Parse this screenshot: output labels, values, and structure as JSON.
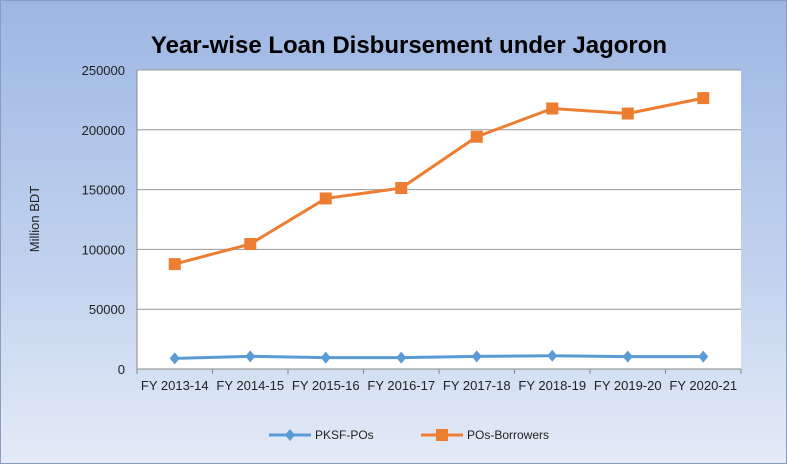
{
  "chart_data": {
    "type": "line",
    "title": "Year-wise Loan Disbursement under Jagoron",
    "xlabel": "",
    "ylabel": "Million BDT",
    "categories": [
      "FY 2013-14",
      "FY 2014-15",
      "FY 2015-16",
      "FY 2016-17",
      "FY 2017-18",
      "FY 2018-19",
      "FY 2019-20",
      "FY 2020-21"
    ],
    "ylim": [
      0,
      250000
    ],
    "yticks": [
      "0",
      "50000",
      "100000",
      "150000",
      "200000",
      "250000"
    ],
    "grid": true,
    "legend_position": "bottom",
    "series": [
      {
        "name": "PKSF-POs",
        "color": "#5b9bd5",
        "marker": "diamond",
        "values": [
          8900,
          10600,
          9500,
          9500,
          10600,
          11100,
          10300,
          10300
        ]
      },
      {
        "name": "POs-Borrowers",
        "color": "#ed7d31",
        "marker": "square",
        "values": [
          87700,
          104500,
          142600,
          151300,
          194200,
          217800,
          213600,
          226500
        ]
      }
    ]
  }
}
